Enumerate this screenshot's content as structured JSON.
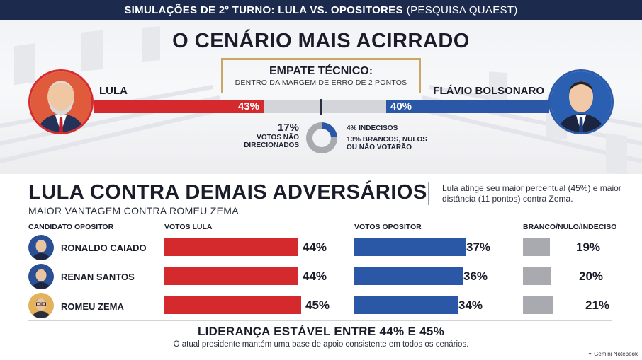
{
  "header": {
    "title_bold": "SIMULAÇÕES DE 2º TURNO: LULA VS. OPOSITORES",
    "title_light": "(PESQUISA QUAEST)"
  },
  "scenario": {
    "headline": "O CENÁRIO MAIS ACIRRADO",
    "tie_title": "EMPATE TÉCNICO:",
    "tie_subtitle": "DENTRO DA MARGEM DE ERRO DE 2 PONTOS",
    "left_name": "LULA",
    "left_pct": "43%",
    "right_name": "FLÁVIO BOLSONARO",
    "right_pct": "40%",
    "undirected_pct": "17%",
    "undirected_label": [
      "VOTOS NÃO",
      "DIRECIONADOS"
    ],
    "undecided_label": "4% INDECISOS",
    "blank_label": [
      "13% BRANCOS, NULOS",
      "OU NÃO VOTARÃO"
    ],
    "colors": {
      "lula": "#d42a2e",
      "opponent": "#2b58a6",
      "undecided": "#a8aaaf",
      "frame": "#c9a867"
    }
  },
  "section2": {
    "title": "LULA CONTRA DEMAIS ADVERSÁRIOS",
    "subtitle": "MAIOR VANTAGEM CONTRA ROMEU ZEMA",
    "note": "Lula atinge seu maior percentual (45%) e maior distância (11 pontos) contra Zema.",
    "columns": [
      "CANDIDATO OPOSITOR",
      "VOTOS LULA",
      "VOTOS OPOSITOR",
      "BRANCO/NULO/INDECISO"
    ]
  },
  "chart_data": [
    {
      "type": "bar",
      "title": "O CENÁRIO MAIS ACIRRADO",
      "categories": [
        "LULA",
        "FLÁVIO BOLSONARO"
      ],
      "values": [
        43,
        40
      ],
      "unit": "%"
    },
    {
      "type": "pie",
      "title": "VOTOS NÃO DIRECIONADOS",
      "total": 17,
      "categories": [
        "INDECISOS",
        "BRANCOS, NULOS OU NÃO VOTARÃO"
      ],
      "values": [
        4,
        13
      ],
      "unit": "%"
    },
    {
      "type": "bar",
      "title": "LULA CONTRA DEMAIS ADVERSÁRIOS",
      "categories": [
        "RONALDO CAIADO",
        "RENAN SANTOS",
        "ROMEU ZEMA"
      ],
      "series": [
        {
          "name": "VOTOS LULA",
          "values": [
            44,
            44,
            45
          ]
        },
        {
          "name": "VOTOS OPOSITOR",
          "values": [
            37,
            36,
            34
          ]
        },
        {
          "name": "BRANCO/NULO/INDECISO",
          "values": [
            19,
            20,
            21
          ]
        }
      ],
      "unit": "%"
    }
  ],
  "rows": [
    {
      "name": "RONALDO CAIADO",
      "lula": "44%",
      "opp": "37%",
      "blank": "19%"
    },
    {
      "name": "RENAN SANTOS",
      "lula": "44%",
      "opp": "36%",
      "blank": "20%"
    },
    {
      "name": "ROMEU ZEMA",
      "lula": "45%",
      "opp": "34%",
      "blank": "21%"
    }
  ],
  "footer": {
    "title": "LIDERANÇA ESTÁVEL ENTRE 44% E 45%",
    "subtitle": "O atual presidente mantém uma base de apoio consistente em todos os cenários.",
    "brand": "Gemini Notebook"
  }
}
